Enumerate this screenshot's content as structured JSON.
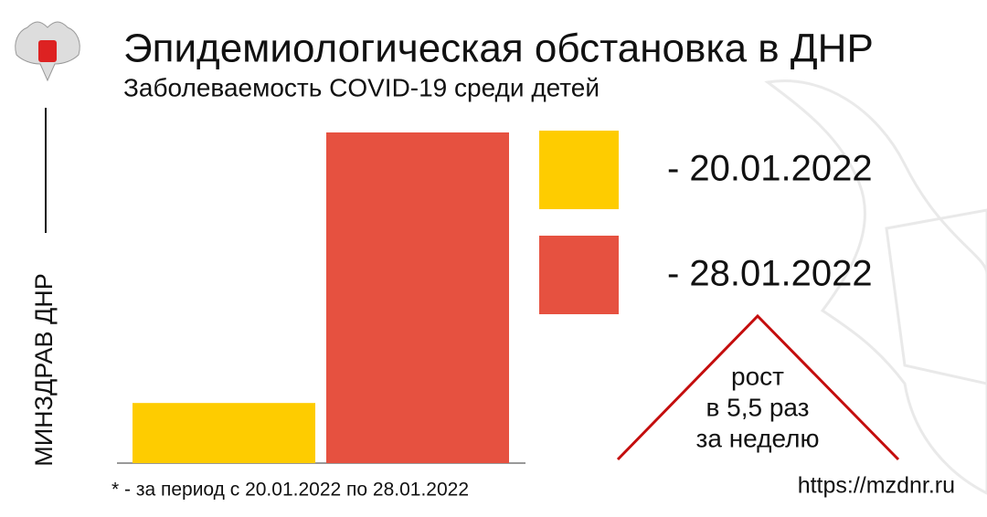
{
  "chart_data": {
    "type": "bar",
    "title": "Эпидемиологическая обстановка в ДНР",
    "subtitle": "Заболеваемость COVID-19 среди детей",
    "categories": [
      null,
      null
    ],
    "series": [
      {
        "name": "- 20.01.2022",
        "color": "#fecc00",
        "values": [
          1,
          null
        ]
      },
      {
        "name": "- 28.01.2022",
        "color": "#e65140",
        "values": [
          null,
          5.5
        ]
      }
    ],
    "ylim": [
      0,
      5.5
    ],
    "annotations": [
      "рост",
      "в 5,5 раз",
      "за неделю"
    ],
    "footnote": "* - за период с 20.01.2022 по 28.01.2022",
    "source": "https://mzdnr.ru",
    "side_label": "МИНЗДРАВ ДНР"
  }
}
